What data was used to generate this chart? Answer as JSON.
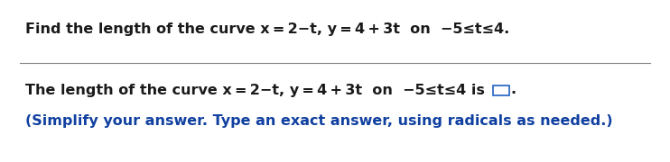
{
  "line1": "Find the length of the curve x = 2−t, y = 4 + 3t  on  −5≤t≤4.",
  "line2": "The length of the curve x = 2−t, y = 4 + 3t  on  −5≤t≤4 is ",
  "line2_end": ".",
  "line3": "(Simplify your answer. Type an exact answer, using radicals as needed.)",
  "line3_color": "#1040a0",
  "text_color": "#1a1a1a",
  "background_color": "#ffffff",
  "font_size": 11.5,
  "font_family": "DejaVu Sans Condensed",
  "separator_color": "#888888",
  "box_color": "#2060c0"
}
